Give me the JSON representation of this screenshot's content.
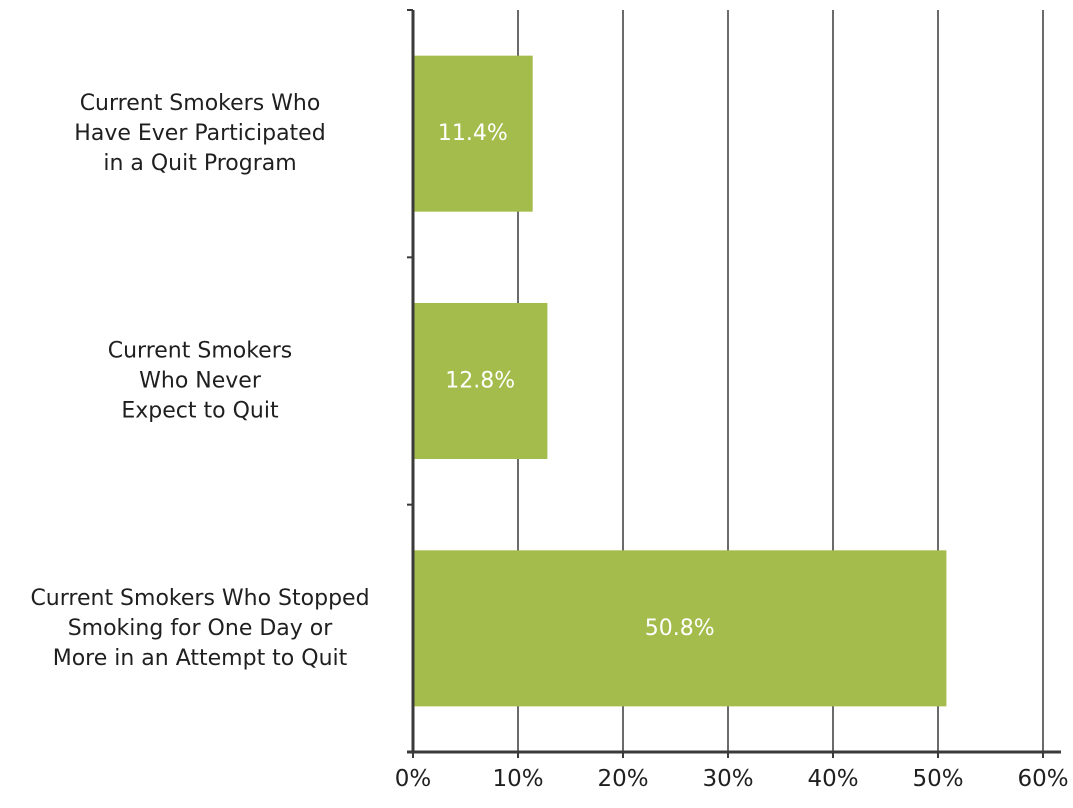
{
  "chart_data": {
    "type": "bar",
    "orientation": "horizontal",
    "categories": [
      [
        "Current Smokers Who",
        "Have Ever Participated",
        "in a Quit Program"
      ],
      [
        "Current Smokers",
        "Who Never",
        "Expect to Quit"
      ],
      [
        "Current Smokers Who Stopped",
        "Smoking for One Day or",
        "More in an Attempt to Quit"
      ]
    ],
    "values": [
      11.4,
      12.8,
      50.8
    ],
    "data_labels": [
      "11.4%",
      "12.8%",
      "50.8%"
    ],
    "xlim": [
      0,
      60
    ],
    "xticks": [
      0,
      10,
      20,
      30,
      40,
      50,
      60
    ],
    "xtick_labels": [
      "0%",
      "10%",
      "20%",
      "30%",
      "40%",
      "50%",
      "60%"
    ],
    "title": "",
    "xlabel": "",
    "ylabel": "",
    "grid": "vertical",
    "legend": "none",
    "colors": {
      "bar": "#a4bc4b",
      "grid": "#3a3a3a",
      "axis": "#3a3a3a",
      "text": "#1f1f1f",
      "data_label": "#ffffff"
    }
  }
}
